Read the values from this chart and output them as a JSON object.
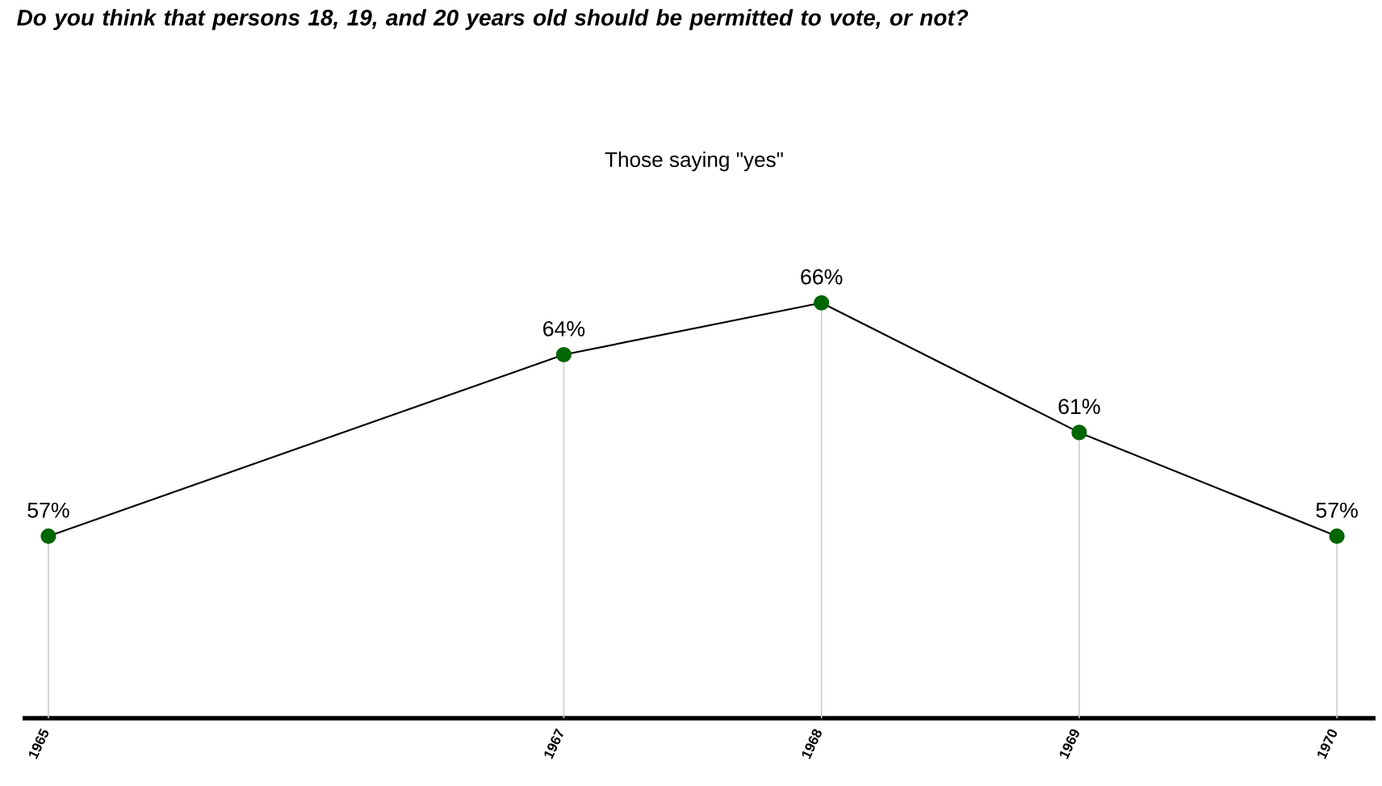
{
  "chart_data": {
    "type": "line",
    "title": "Do you think that persons 18, 19, and 20 years old should be permitted to vote, or not?",
    "subtitle": "Those saying \"yes\"",
    "x": [
      1965,
      1967,
      1968,
      1969,
      1970
    ],
    "values": [
      57,
      64,
      66,
      61,
      57
    ],
    "value_labels": [
      "57%",
      "64%",
      "66%",
      "61%",
      "57%"
    ],
    "color": "#006600",
    "marker": "circle",
    "grid": "x",
    "xlim": [
      1964.9,
      1970.15
    ],
    "xticks": [
      1965,
      1967,
      1968,
      1969,
      1970
    ]
  }
}
